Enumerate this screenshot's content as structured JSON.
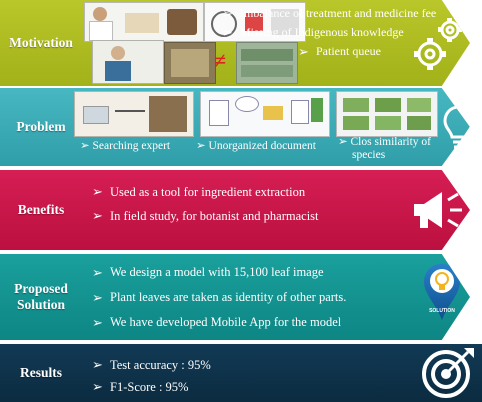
{
  "colors": {
    "motivation": "#a7b51d",
    "problem": "#3ba9b3",
    "benefits": "#c9174a",
    "proposed": "#13908f",
    "results": "#0d2f46"
  },
  "motivation": {
    "label": "Motivation",
    "bullets": [
      "Imbalance of treatment and medicine fee",
      "Missing of Indigenous knowledge",
      "Patient queue"
    ],
    "icon": "gears-icon",
    "not_equal_sign": "≠"
  },
  "problem": {
    "label": "Problem",
    "captions": [
      "Searching expert",
      "Unorganized document",
      "Clos similarity of",
      "species"
    ],
    "icon": "lightbulb-icon"
  },
  "benefits": {
    "label": "Benefits",
    "bullets": [
      "Used as a tool for ingredient extraction",
      "In field study,  for botanist and pharmacist"
    ],
    "icon": "megaphone-icon"
  },
  "proposed": {
    "label_line1": "Proposed",
    "label_line2": "Solution",
    "bullets": [
      "We design a model with 15,100 leaf image",
      "Plant leaves are taken as identity of other parts.",
      "We have developed  Mobile App  for  the model"
    ],
    "icon": "solution-bulb-icon",
    "icon_text": "SOLUTION"
  },
  "results": {
    "label": "Results",
    "bullets": [
      "Test accuracy : 95%",
      "F1-Score : 95%"
    ],
    "icon": "target-icon"
  }
}
